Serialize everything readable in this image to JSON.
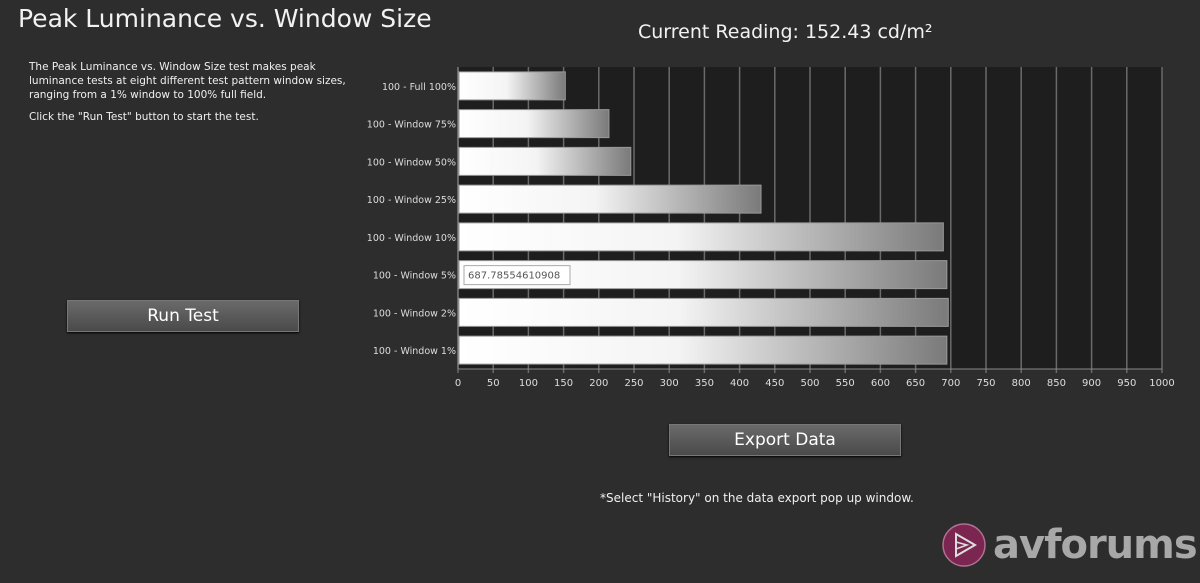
{
  "title": "Peak Luminance vs. Window Size",
  "description": [
    "The Peak Luminance vs. Window Size test makes peak luminance tests at eight different test pattern window sizes, ranging from a 1% window to 100% full field.",
    "Click the \"Run Test\" button to start the test."
  ],
  "run_button": "Run Test",
  "current_reading": "Current Reading: 152.43 cd/m²",
  "export_button": "Export  Data",
  "export_note": "*Select \"History\" on the data export pop up window.",
  "tooltip": "687.78554610908",
  "logo_text": "avforums",
  "colors": {
    "background": "#2d2d2d",
    "plot_background": "#1e1e1e",
    "logo_accent": "#7a2650"
  },
  "chart_data": {
    "type": "bar",
    "orientation": "horizontal",
    "categories": [
      "100 - Full  100%",
      "100 - Window 75%",
      "100 - Window 50%",
      "100 - Window 25%",
      "100 - Window 10%",
      "100 - Window  5%",
      "100 - Window  2%",
      "100 - Window  1%"
    ],
    "values": [
      151,
      213,
      244,
      429,
      688,
      693,
      695,
      693
    ],
    "xlim": [
      0,
      1000
    ],
    "xticks": [
      0,
      50,
      100,
      150,
      200,
      250,
      300,
      350,
      400,
      450,
      500,
      550,
      600,
      650,
      700,
      750,
      800,
      850,
      900,
      950,
      1000
    ],
    "grid": true
  }
}
